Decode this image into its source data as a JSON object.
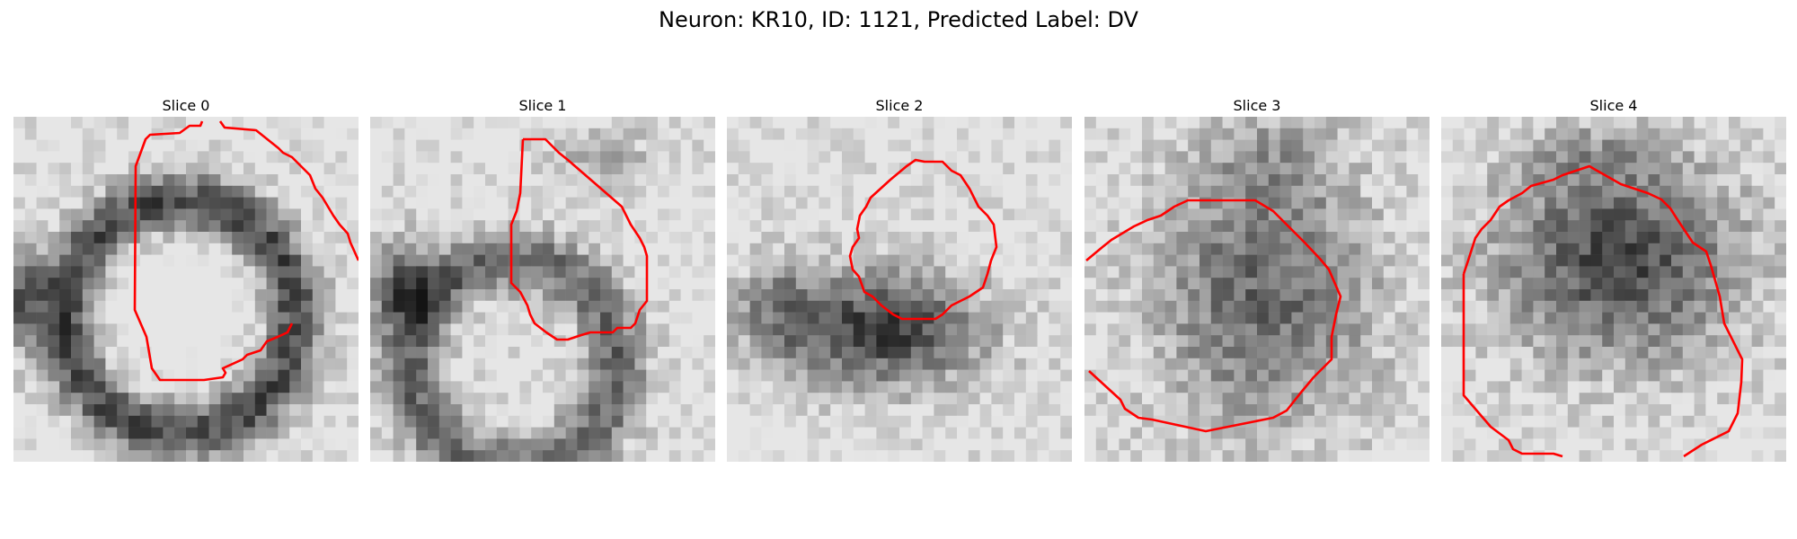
{
  "figure": {
    "title": "Neuron: KR10, ID: 1121, Predicted Label: DV"
  },
  "panels": [
    {
      "label": "Slice 0"
    },
    {
      "label": "Slice 1"
    },
    {
      "label": "Slice 2"
    },
    {
      "label": "Slice 3"
    },
    {
      "label": "Slice 4"
    }
  ],
  "colors": {
    "outline": "#ff0000",
    "background": "#ffffff"
  }
}
